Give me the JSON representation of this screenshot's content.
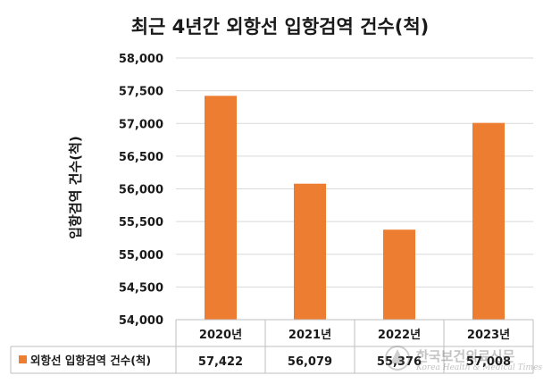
{
  "chart_data": {
    "type": "bar",
    "title": "최근 4년간 외항선 입항검역 건수(척)",
    "ylabel": "입항검역 건수(척)",
    "xlabel": "",
    "categories": [
      "2020년",
      "2021년",
      "2022년",
      "2023년"
    ],
    "series": [
      {
        "name": "외항선 입항검역 건수(척)",
        "values": [
          57422,
          56079,
          55376,
          57008
        ],
        "value_labels": [
          "57,422",
          "56,079",
          "55,376",
          "57,008"
        ],
        "color": "#ed7d31"
      }
    ],
    "ylim": [
      54000,
      58000
    ],
    "yticks": [
      54000,
      54500,
      55000,
      55500,
      56000,
      56500,
      57000,
      57500,
      58000
    ],
    "ytick_labels": [
      "54,000",
      "54,500",
      "55,000",
      "55,500",
      "56,000",
      "56,500",
      "57,000",
      "57,500",
      "58,000"
    ],
    "grid": true,
    "legend": "data-table"
  },
  "watermark": {
    "name": "한국보건의료신문",
    "subtitle": "Korea Health & Medical Times"
  },
  "colors": {
    "bar": "#ed7d31",
    "grid": "#d9d9d9",
    "table_border": "#bfbfbf"
  }
}
